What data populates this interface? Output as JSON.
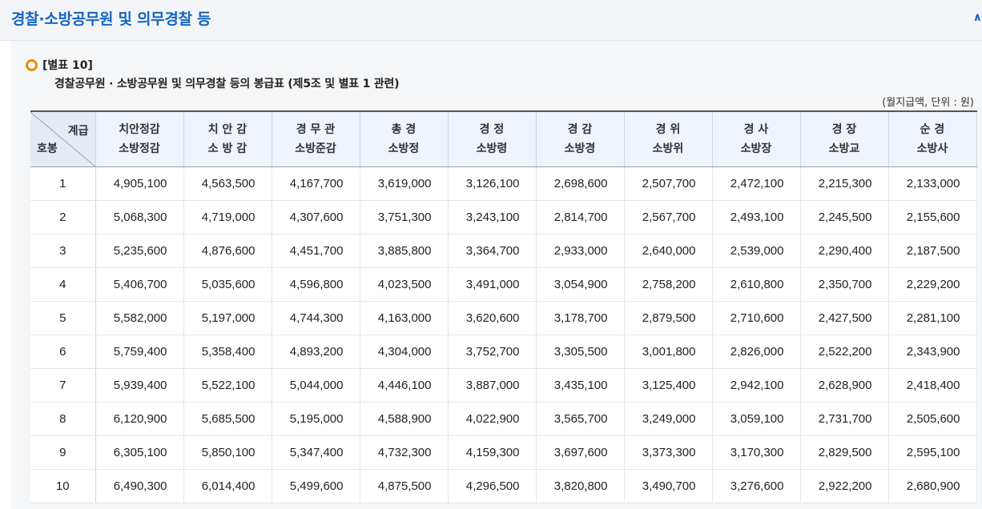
{
  "page": {
    "title": "경찰·소방공무원 및 의무경찰 등",
    "edge_mark": "∧"
  },
  "table": {
    "label": "[별표 10]",
    "caption": "경찰공무원 · 소방공무원 및 의무경찰 등의 봉급표 (제5조 및 별표 1 관련)",
    "unit_note": "(월지급액, 단위 : 원)",
    "corner": {
      "grade": "계급",
      "step": "호봉"
    },
    "columns": [
      {
        "line1": "치안정감",
        "line2": "소방정감"
      },
      {
        "line1": "치 안 감",
        "line2": "소 방 감"
      },
      {
        "line1": "경 무 관",
        "line2": "소방준감"
      },
      {
        "line1": "총 경",
        "line2": "소방정"
      },
      {
        "line1": "경 정",
        "line2": "소방령"
      },
      {
        "line1": "경 감",
        "line2": "소방경"
      },
      {
        "line1": "경 위",
        "line2": "소방위"
      },
      {
        "line1": "경 사",
        "line2": "소방장"
      },
      {
        "line1": "경 장",
        "line2": "소방교"
      },
      {
        "line1": "순 경",
        "line2": "소방사"
      }
    ],
    "rows": [
      {
        "step": "1",
        "values": [
          "4,905,100",
          "4,563,500",
          "4,167,700",
          "3,619,000",
          "3,126,100",
          "2,698,600",
          "2,507,700",
          "2,472,100",
          "2,215,300",
          "2,133,000"
        ]
      },
      {
        "step": "2",
        "values": [
          "5,068,300",
          "4,719,000",
          "4,307,600",
          "3,751,300",
          "3,243,100",
          "2,814,700",
          "2,567,700",
          "2,493,100",
          "2,245,500",
          "2,155,600"
        ]
      },
      {
        "step": "3",
        "values": [
          "5,235,600",
          "4,876,600",
          "4,451,700",
          "3,885,800",
          "3,364,700",
          "2,933,000",
          "2,640,000",
          "2,539,000",
          "2,290,400",
          "2,187,500"
        ]
      },
      {
        "step": "4",
        "values": [
          "5,406,700",
          "5,035,600",
          "4,596,800",
          "4,023,500",
          "3,491,000",
          "3,054,900",
          "2,758,200",
          "2,610,800",
          "2,350,700",
          "2,229,200"
        ]
      },
      {
        "step": "5",
        "values": [
          "5,582,000",
          "5,197,000",
          "4,744,300",
          "4,163,000",
          "3,620,600",
          "3,178,700",
          "2,879,500",
          "2,710,600",
          "2,427,500",
          "2,281,100"
        ]
      },
      {
        "step": "6",
        "values": [
          "5,759,400",
          "5,358,400",
          "4,893,200",
          "4,304,000",
          "3,752,700",
          "3,305,500",
          "3,001,800",
          "2,826,000",
          "2,522,200",
          "2,343,900"
        ]
      },
      {
        "step": "7",
        "values": [
          "5,939,400",
          "5,522,100",
          "5,044,000",
          "4,446,100",
          "3,887,000",
          "3,435,100",
          "3,125,400",
          "2,942,100",
          "2,628,900",
          "2,418,400"
        ]
      },
      {
        "step": "8",
        "values": [
          "6,120,900",
          "5,685,500",
          "5,195,000",
          "4,588,900",
          "4,022,900",
          "3,565,700",
          "3,249,000",
          "3,059,100",
          "2,731,700",
          "2,505,600"
        ]
      },
      {
        "step": "9",
        "values": [
          "6,305,100",
          "5,850,100",
          "5,347,400",
          "4,732,300",
          "4,159,300",
          "3,697,600",
          "3,373,300",
          "3,170,300",
          "2,829,500",
          "2,595,100"
        ]
      },
      {
        "step": "10",
        "values": [
          "6,490,300",
          "6,014,400",
          "5,499,600",
          "4,875,500",
          "4,296,500",
          "3,820,800",
          "3,490,700",
          "3,276,600",
          "2,922,200",
          "2,680,900"
        ]
      }
    ]
  },
  "colors": {
    "title": "#1565c0",
    "bullet": "#f08a00",
    "header_bg": "#eef3fc"
  }
}
